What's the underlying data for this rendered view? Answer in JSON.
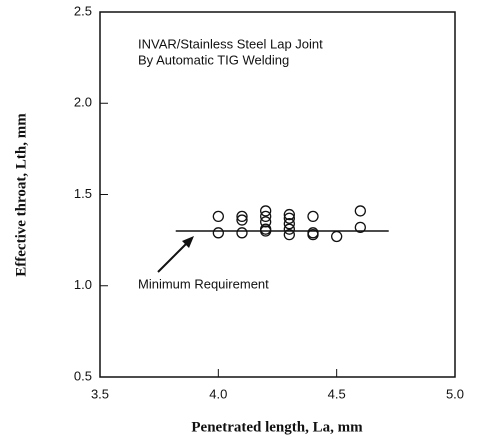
{
  "chart_data": {
    "type": "scatter",
    "title": [
      "INVAR/Stainless Steel Lap Joint",
      "By Automatic TIG Welding"
    ],
    "x_label": "Penetrated length, La,   mm",
    "y_label": "Effective throat, Lth,   mm",
    "x": [
      4.0,
      4.0,
      4.1,
      4.1,
      4.1,
      4.2,
      4.2,
      4.2,
      4.2,
      4.2,
      4.3,
      4.3,
      4.3,
      4.3,
      4.3,
      4.4,
      4.4,
      4.4,
      4.5,
      4.6,
      4.6
    ],
    "values": [
      1.38,
      1.29,
      1.38,
      1.36,
      1.29,
      1.41,
      1.38,
      1.35,
      1.31,
      1.3,
      1.39,
      1.37,
      1.34,
      1.31,
      1.28,
      1.38,
      1.29,
      1.28,
      1.27,
      1.41,
      1.32
    ],
    "color": "#111111",
    "reference_line": {
      "x": [
        3.82,
        4.72
      ],
      "y": 1.3
    },
    "annotation": "Minimum Requirement",
    "xlim": [
      3.5,
      5.0
    ],
    "xticks": [
      3.5,
      {
        "value": 4.0,
        "label": "4.0"
      },
      4.5,
      {
        "value": 5.0,
        "label": "5.0"
      }
    ],
    "ylim": [
      0.5,
      2.5
    ],
    "yticks": [
      0.5,
      {
        "value": 1.0,
        "label": "1.0"
      },
      1.5,
      {
        "value": 2.0,
        "label": "2.0"
      },
      2.5
    ]
  }
}
